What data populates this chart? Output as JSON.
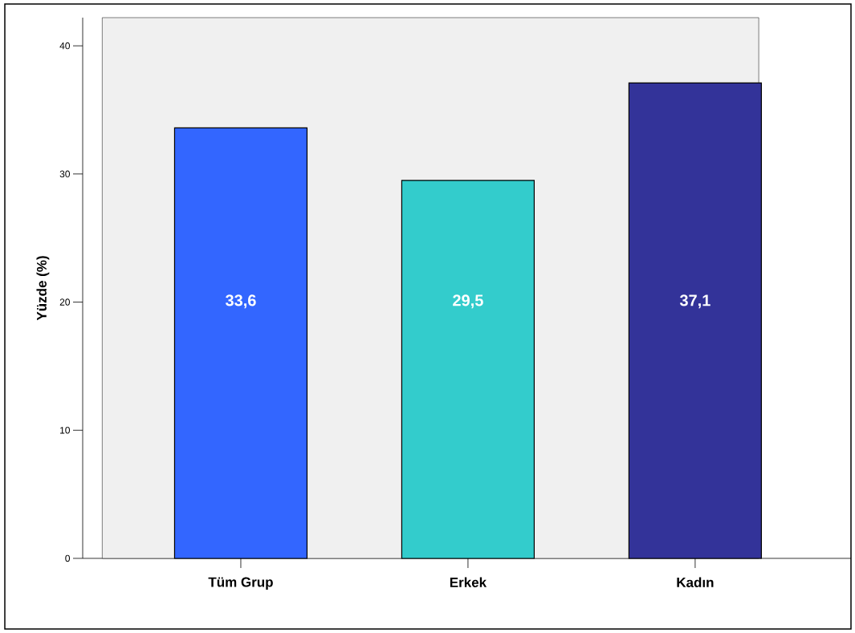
{
  "chart_data": {
    "type": "bar",
    "ylabel": "Yüzde (%)",
    "categories": [
      "Tüm Grup",
      "Erkek",
      "Kadın"
    ],
    "values": [
      33.6,
      29.5,
      37.1
    ],
    "colors": [
      "#3366ff",
      "#33cccc",
      "#333399"
    ],
    "value_labels": [
      "33,6",
      "29,5",
      "37,1"
    ],
    "ylim": [
      0,
      42.2
    ],
    "yticks": [
      0,
      10,
      20,
      30,
      40
    ],
    "grid": false
  }
}
